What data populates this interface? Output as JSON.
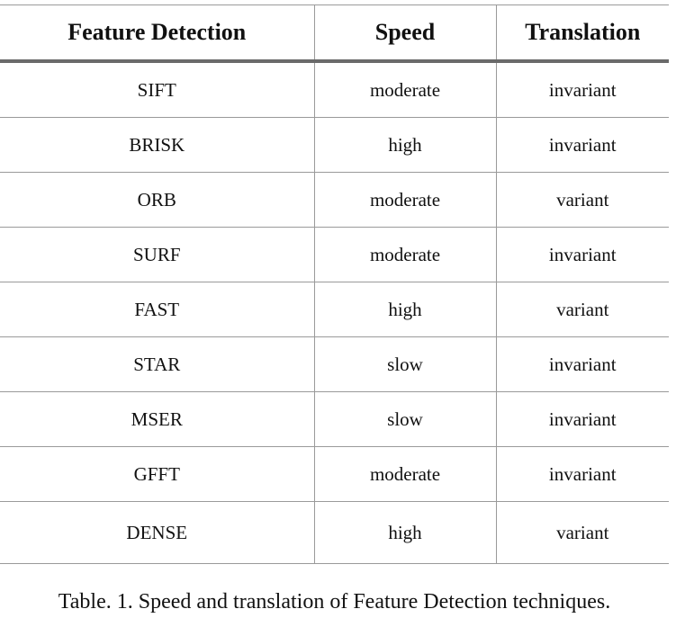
{
  "table": {
    "headers": [
      "Feature Detection",
      "Speed",
      "Translation"
    ],
    "rows": [
      [
        "SIFT",
        "moderate",
        "invariant"
      ],
      [
        "BRISK",
        "high",
        "invariant"
      ],
      [
        "ORB",
        "moderate",
        "variant"
      ],
      [
        "SURF",
        "moderate",
        "invariant"
      ],
      [
        "FAST",
        "high",
        "variant"
      ],
      [
        "STAR",
        "slow",
        "invariant"
      ],
      [
        "MSER",
        "slow",
        "invariant"
      ],
      [
        "GFFT",
        "moderate",
        "invariant"
      ],
      [
        "DENSE",
        "high",
        "variant"
      ]
    ]
  },
  "caption": "Table. 1. Speed and translation of Feature Detection techniques."
}
